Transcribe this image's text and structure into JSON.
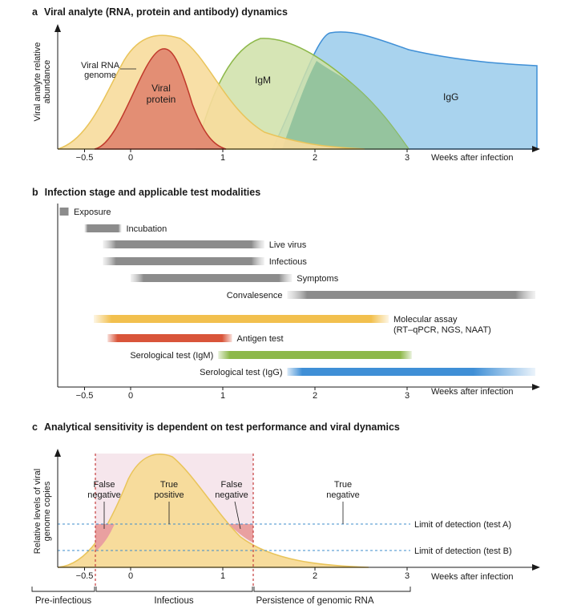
{
  "panel_a": {
    "letter": "a",
    "title": "Viral analyte (RNA, protein and antibody) dynamics",
    "ylabel_line1": "Viral analyte relative",
    "ylabel_line2": "abundance",
    "xlabel": "Weeks after infection",
    "ticks": [
      "−0.5",
      "0",
      "1",
      "2",
      "3"
    ],
    "labels": {
      "rna_line1": "Viral RNA",
      "rna_line2": "genome",
      "protein_line1": "Viral",
      "protein_line2": "protein",
      "igm": "IgM",
      "igg": "IgG"
    },
    "colors": {
      "rna": "#f7dc9c",
      "protein": "#e38e74",
      "igm": "#cfe0a8",
      "igg": "#a9d3ee",
      "overlap": "#8cbf9a"
    }
  },
  "panel_b": {
    "letter": "b",
    "title": "Infection stage and applicable test modalities",
    "xlabel": "Weeks after infection",
    "ticks": [
      "−0.5",
      "0",
      "1",
      "2",
      "3"
    ],
    "bars": [
      {
        "label": "Exposure",
        "start": -0.55,
        "end": -0.45
      },
      {
        "label": "Incubation",
        "start": -0.5,
        "end": -0.1
      },
      {
        "label": "Live virus",
        "start": -0.3,
        "end": 1.45
      },
      {
        "label": "Infectious",
        "start": -0.3,
        "end": 1.45
      },
      {
        "label": "Symptoms",
        "start": 0.0,
        "end": 1.75
      },
      {
        "label": "Convalesence",
        "start": 1.7,
        "end": 4.5
      },
      {
        "label": "Molecular assay",
        "label2": "(RT–qPCR, NGS, NAAT)",
        "start": -0.4,
        "end": 2.8
      },
      {
        "label": "Antigen test",
        "start": -0.25,
        "end": 1.1
      },
      {
        "label": "Serological test (IgM)",
        "start": 0.95,
        "end": 3.05
      },
      {
        "label": "Serological test (IgG)",
        "start": 1.7,
        "end": 4.5
      }
    ],
    "colors": {
      "gray": "#8c8c8c",
      "molecular": "#f2c04e",
      "antigen": "#d9553a",
      "igm": "#8db84a",
      "igg": "#3f8fd6"
    }
  },
  "panel_c": {
    "letter": "c",
    "title": "Analytical sensitivity is dependent on test performance and viral dynamics",
    "ylabel_line1": "Relative levels of viral",
    "ylabel_line2": "genome copies",
    "xlabel": "Weeks after infection",
    "ticks": [
      "−0.5",
      "0",
      "1",
      "2",
      "3"
    ],
    "lod_a": "Limit of detection (test A)",
    "lod_b": "Limit of detection (test B)",
    "false_neg_left": [
      "False",
      "negative"
    ],
    "true_pos": [
      "True",
      "positive"
    ],
    "false_neg_right": [
      "False",
      "negative"
    ],
    "true_neg": [
      "True",
      "negative"
    ],
    "phases": [
      "Pre-infectious",
      "Infectious",
      "Persistence of genomic RNA"
    ],
    "colors": {
      "curve": "#f7dc9c",
      "shade": "#f6e6ec",
      "false_neg": "#e9a0a0",
      "dash_red": "#c43c3c",
      "lod": "#3d8ccc"
    }
  }
}
